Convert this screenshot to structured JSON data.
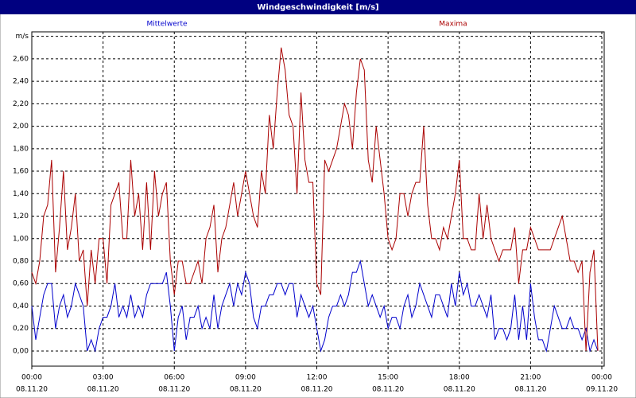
{
  "chart_data": {
    "type": "line",
    "title": "Windgeschwindigkeit [m/s]",
    "x": [
      0,
      10,
      20,
      30,
      40,
      50,
      60,
      70,
      80,
      90,
      100,
      110,
      120,
      130,
      140,
      150,
      160,
      170,
      180,
      190,
      200,
      210,
      220,
      230,
      240,
      250,
      260,
      270,
      280,
      290,
      300,
      310,
      320,
      330,
      340,
      350,
      360,
      370,
      380,
      390,
      400,
      410,
      420,
      430,
      440,
      450,
      460,
      470,
      480,
      490,
      500,
      510,
      520,
      530,
      540,
      550,
      560,
      570,
      580,
      590,
      600,
      610,
      620,
      630,
      640,
      650,
      660,
      670,
      680,
      690,
      700,
      710,
      720,
      730,
      740,
      750,
      760,
      770,
      780,
      790,
      800,
      810,
      820,
      830,
      840,
      850,
      860,
      870,
      880,
      890,
      900,
      910,
      920,
      930,
      940,
      950,
      960,
      970,
      980,
      990,
      1000,
      1010,
      1020,
      1030,
      1040,
      1050,
      1060,
      1070,
      1080,
      1090,
      1100,
      1110,
      1120,
      1130,
      1140,
      1150,
      1160,
      1170,
      1180,
      1190,
      1200,
      1210,
      1220,
      1230,
      1240,
      1250,
      1260,
      1270,
      1280,
      1290,
      1300,
      1310,
      1320,
      1330,
      1340,
      1350,
      1360,
      1370,
      1380,
      1390,
      1400,
      1410,
      1420,
      1430
    ],
    "series": [
      {
        "name": "Mittelwerte",
        "color": "#0000cc",
        "values": [
          0.4,
          0.1,
          0.3,
          0.5,
          0.6,
          0.6,
          0.2,
          0.4,
          0.5,
          0.3,
          0.4,
          0.6,
          0.5,
          0.4,
          0.0,
          0.1,
          0.0,
          0.2,
          0.3,
          0.3,
          0.4,
          0.6,
          0.3,
          0.4,
          0.3,
          0.5,
          0.3,
          0.4,
          0.3,
          0.5,
          0.6,
          0.6,
          0.6,
          0.6,
          0.7,
          0.4,
          0.0,
          0.3,
          0.4,
          0.1,
          0.3,
          0.3,
          0.4,
          0.2,
          0.3,
          0.2,
          0.5,
          0.2,
          0.4,
          0.5,
          0.6,
          0.4,
          0.6,
          0.5,
          0.7,
          0.6,
          0.3,
          0.2,
          0.4,
          0.4,
          0.5,
          0.5,
          0.6,
          0.6,
          0.5,
          0.6,
          0.6,
          0.3,
          0.5,
          0.4,
          0.3,
          0.4,
          0.2,
          0.0,
          0.1,
          0.3,
          0.4,
          0.4,
          0.5,
          0.4,
          0.5,
          0.7,
          0.7,
          0.8,
          0.6,
          0.4,
          0.5,
          0.4,
          0.3,
          0.4,
          0.2,
          0.3,
          0.3,
          0.2,
          0.4,
          0.5,
          0.3,
          0.4,
          0.6,
          0.5,
          0.4,
          0.3,
          0.5,
          0.5,
          0.4,
          0.3,
          0.6,
          0.4,
          0.7,
          0.5,
          0.6,
          0.4,
          0.4,
          0.5,
          0.4,
          0.3,
          0.5,
          0.1,
          0.2,
          0.2,
          0.1,
          0.2,
          0.5,
          0.1,
          0.4,
          0.1,
          0.6,
          0.3,
          0.1,
          0.1,
          0.0,
          0.2,
          0.4,
          0.3,
          0.2,
          0.2,
          0.3,
          0.2,
          0.2,
          0.1,
          0.2,
          0.0,
          0.1,
          0.0
        ]
      },
      {
        "name": "Maxima",
        "color": "#aa0000",
        "values": [
          0.7,
          0.6,
          0.8,
          1.2,
          1.3,
          1.7,
          0.7,
          1.1,
          1.6,
          0.9,
          1.1,
          1.4,
          0.8,
          0.9,
          0.4,
          0.9,
          0.6,
          1.0,
          1.0,
          0.6,
          1.3,
          1.4,
          1.5,
          1.0,
          1.0,
          1.7,
          1.2,
          1.4,
          0.9,
          1.5,
          0.9,
          1.6,
          1.2,
          1.4,
          1.5,
          0.8,
          0.5,
          0.8,
          0.8,
          0.6,
          0.6,
          0.7,
          0.8,
          0.6,
          1.0,
          1.1,
          1.3,
          0.7,
          1.0,
          1.1,
          1.3,
          1.5,
          1.2,
          1.4,
          1.6,
          1.4,
          1.2,
          1.1,
          1.6,
          1.4,
          2.1,
          1.8,
          2.3,
          2.7,
          2.5,
          2.1,
          2.0,
          1.4,
          2.3,
          1.7,
          1.5,
          1.5,
          0.6,
          0.5,
          1.7,
          1.6,
          1.7,
          1.8,
          2.0,
          2.2,
          2.1,
          1.8,
          2.3,
          2.6,
          2.5,
          1.7,
          1.5,
          2.0,
          1.7,
          1.4,
          1.0,
          0.9,
          1.0,
          1.4,
          1.4,
          1.2,
          1.4,
          1.5,
          1.5,
          2.0,
          1.3,
          1.0,
          1.0,
          0.9,
          1.1,
          1.0,
          1.2,
          1.4,
          1.7,
          1.0,
          1.0,
          0.9,
          0.9,
          1.4,
          1.0,
          1.3,
          1.0,
          0.9,
          0.8,
          0.9,
          0.9,
          0.9,
          1.1,
          0.6,
          0.9,
          0.9,
          1.1,
          1.0,
          0.9,
          0.9,
          0.9,
          0.9,
          1.0,
          1.1,
          1.2,
          1.0,
          0.8,
          0.8,
          0.7,
          0.8,
          0.0,
          0.7,
          0.9,
          0.0
        ]
      }
    ],
    "xlim": [
      0,
      1446
    ],
    "xticks": [
      {
        "value": 0,
        "label": "00:00",
        "date": "08.11.20"
      },
      {
        "value": 180,
        "label": "03:00",
        "date": "08.11.20"
      },
      {
        "value": 360,
        "label": "06:00",
        "date": "08.11.20"
      },
      {
        "value": 540,
        "label": "09:00",
        "date": "08.11.20"
      },
      {
        "value": 720,
        "label": "12:00",
        "date": "08.11.20"
      },
      {
        "value": 900,
        "label": "15:00",
        "date": "08.11.20"
      },
      {
        "value": 1080,
        "label": "18:00",
        "date": "08.11.20"
      },
      {
        "value": 1260,
        "label": "21:00",
        "date": "08.11.20"
      },
      {
        "value": 1440,
        "label": "00:00",
        "date": "09.11.20"
      }
    ],
    "ylim": [
      -0.135,
      2.84
    ],
    "yticks": [
      {
        "value": 0,
        "label": "0,00"
      },
      {
        "value": 0.2,
        "label": "0,20"
      },
      {
        "value": 0.4,
        "label": "0,40"
      },
      {
        "value": 0.6,
        "label": "0,60"
      },
      {
        "value": 0.8,
        "label": "0,80"
      },
      {
        "value": 1.0,
        "label": "1,00"
      },
      {
        "value": 1.2,
        "label": "1,20"
      },
      {
        "value": 1.4,
        "label": "1,40"
      },
      {
        "value": 1.6,
        "label": "1,60"
      },
      {
        "value": 1.8,
        "label": "1,80"
      },
      {
        "value": 2.0,
        "label": "2,00"
      },
      {
        "value": 2.2,
        "label": "2,20"
      },
      {
        "value": 2.4,
        "label": "2,40"
      },
      {
        "value": 2.6,
        "label": "2,60"
      },
      {
        "value": 2.8,
        "label": "m/s"
      }
    ],
    "grid": true
  }
}
